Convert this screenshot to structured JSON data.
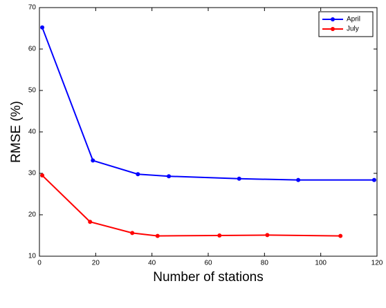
{
  "chart_data": {
    "type": "line",
    "x_label": "Number of stations",
    "y_label": "RMSE (%)",
    "xlim": [
      0,
      120
    ],
    "ylim": [
      10,
      70
    ],
    "xticks": [
      0,
      20,
      40,
      60,
      80,
      100,
      120
    ],
    "yticks": [
      10,
      20,
      30,
      40,
      50,
      60,
      70
    ],
    "legend": "upper right",
    "series": [
      {
        "name": "April",
        "color": "#0000ff",
        "x": [
          1,
          19,
          35,
          46,
          71,
          92,
          119
        ],
        "values": [
          65.2,
          33.1,
          29.8,
          29.3,
          28.7,
          28.4,
          28.4
        ]
      },
      {
        "name": "July",
        "color": "#ff0000",
        "x": [
          1,
          18,
          33,
          42,
          64,
          81,
          107
        ],
        "values": [
          29.5,
          18.3,
          15.6,
          14.9,
          15.0,
          15.1,
          14.9
        ]
      }
    ]
  }
}
